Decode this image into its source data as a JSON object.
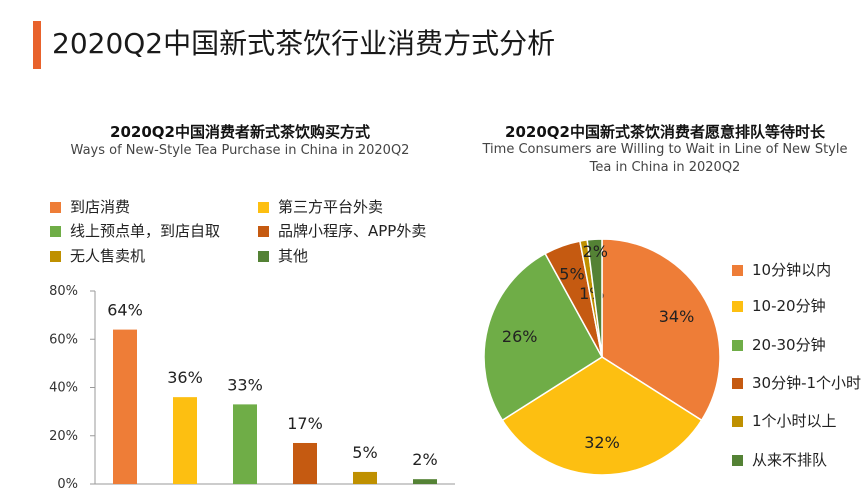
{
  "header": {
    "title": "2020Q2中国新式茶饮行业消费方式分析"
  },
  "colors": {
    "accent": "#e8622c",
    "orange": "#ee7d37",
    "yellow": "#fdbf11",
    "green": "#6fad47",
    "rust": "#c55a11",
    "olive": "#bf9000",
    "darkgreen": "#548235"
  },
  "chart_data": [
    {
      "type": "bar",
      "title": "2020Q2中国消费者新式茶饮购买方式",
      "subtitle": "Ways of New-Style Tea Purchase in China in 2020Q2",
      "categories": [
        "到店消费",
        "第三方平台外卖",
        "线上预点单，到店自取",
        "品牌小程序、APP外卖",
        "无人售卖机",
        "其他"
      ],
      "values": [
        64,
        36,
        33,
        17,
        5,
        2
      ],
      "data_labels": [
        "64%",
        "36%",
        "33%",
        "17%",
        "5%",
        "2%"
      ],
      "colors": [
        "#ee7d37",
        "#fdbf11",
        "#6fad47",
        "#c55a11",
        "#bf9000",
        "#548235"
      ],
      "ylim": [
        0,
        80
      ],
      "yticks": [
        "0%",
        "20%",
        "40%",
        "60%",
        "80%"
      ],
      "legend_position": "top",
      "grid": false
    },
    {
      "type": "pie",
      "title": "2020Q2中国新式茶饮消费者愿意排队等待时长",
      "subtitle": "Time Consumers are Willing to Wait in Line of New Style Tea in China in 2020Q2",
      "labels": [
        "10分钟以内",
        "10-20分钟",
        "20-30分钟",
        "30分钟-1个小时",
        "1个小时以上",
        "从来不排队"
      ],
      "values": [
        34,
        32,
        26,
        5,
        1,
        2
      ],
      "data_labels": [
        "34%",
        "32%",
        "26%",
        "5%",
        "1%",
        "2%"
      ],
      "colors": [
        "#ee7d37",
        "#fdbf11",
        "#6fad47",
        "#c55a11",
        "#bf9000",
        "#548235"
      ],
      "legend_position": "right"
    }
  ]
}
